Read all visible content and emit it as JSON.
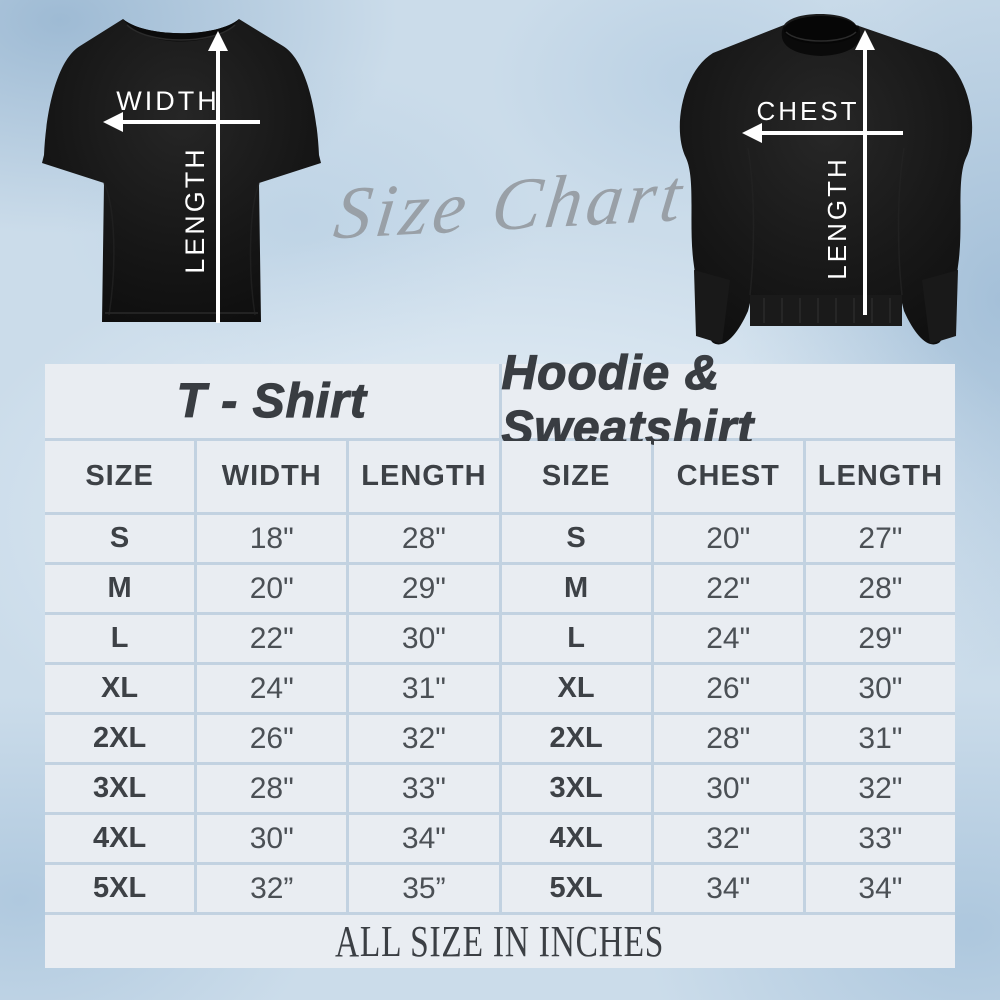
{
  "colors": {
    "background": "#cbdcea",
    "table_cell": "#e9edf2",
    "table_line": "#c2d2e1",
    "heading_text": "#393d42",
    "value_text": "#4b5055",
    "script_text": "#99a0a7",
    "garment": "#141414",
    "measure_line": "#ffffff"
  },
  "hero": {
    "script_title": "Size Chart",
    "tshirt": {
      "width_label": "WIDTH",
      "length_label": "LENGTH"
    },
    "sweatshirt": {
      "chest_label": "CHEST",
      "length_label": "LENGTH"
    }
  },
  "chart_data": [
    {
      "type": "table",
      "title": "T - Shirt",
      "columns": [
        "SIZE",
        "WIDTH",
        "LENGTH"
      ],
      "rows": [
        [
          "S",
          "18\"",
          "28\""
        ],
        [
          "M",
          "20\"",
          "29\""
        ],
        [
          "L",
          "22\"",
          "30\""
        ],
        [
          "XL",
          "24\"",
          "31\""
        ],
        [
          "2XL",
          "26\"",
          "32\""
        ],
        [
          "3XL",
          "28\"",
          "33\""
        ],
        [
          "4XL",
          "30\"",
          "34\""
        ],
        [
          "5XL",
          "32”",
          "35”"
        ]
      ]
    },
    {
      "type": "table",
      "title": "Hoodie & Sweatshirt",
      "columns": [
        "SIZE",
        "CHEST",
        "LENGTH"
      ],
      "rows": [
        [
          "S",
          "20\"",
          "27\""
        ],
        [
          "M",
          "22\"",
          "28\""
        ],
        [
          "L",
          "24\"",
          "29\""
        ],
        [
          "XL",
          "26\"",
          "30\""
        ],
        [
          "2XL",
          "28\"",
          "31\""
        ],
        [
          "3XL",
          "30\"",
          "32\""
        ],
        [
          "4XL",
          "32\"",
          "33\""
        ],
        [
          "5XL",
          "34\"",
          "34\""
        ]
      ]
    }
  ],
  "table_footer": "ALL SIZE IN INCHES"
}
